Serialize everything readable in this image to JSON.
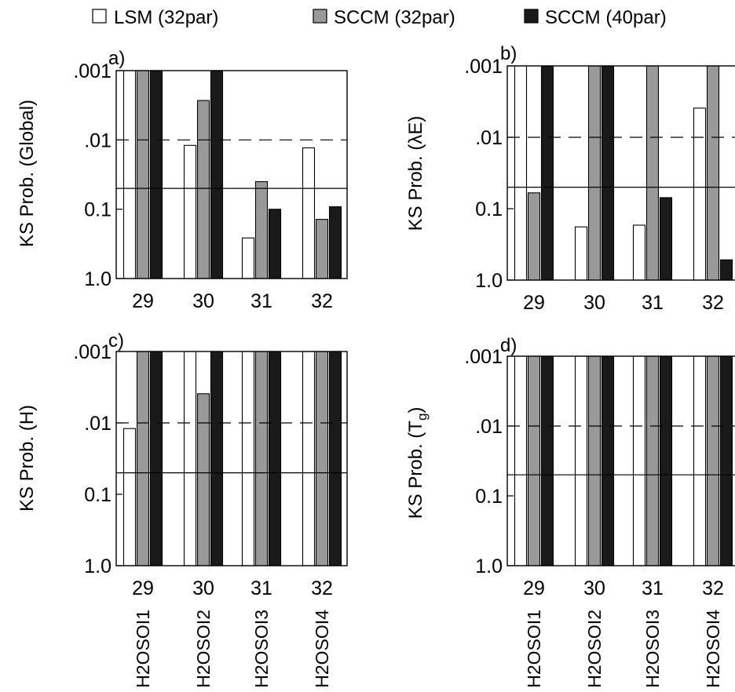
{
  "legend": {
    "items": [
      {
        "label": "LSM (32par)",
        "color": "#ffffff"
      },
      {
        "label": "SCCM (32par)",
        "color": "#999999"
      },
      {
        "label": "SCCM (40par)",
        "color": "#1a1a1a"
      }
    ]
  },
  "chart_data": [
    {
      "type": "bar",
      "panel_label": "a)",
      "ylabel": "KS Prob. (Global)",
      "y_scale": "log",
      "y_inverted": true,
      "ylim": [
        1.0,
        0.001
      ],
      "yticks": [
        ".001",
        ".01",
        "0.1",
        "1.0"
      ],
      "categories": [
        "29",
        "30",
        "31",
        "32"
      ],
      "category_labels": [],
      "reference_lines": [
        {
          "value": 0.01,
          "style": "dashed"
        },
        {
          "value": 0.05,
          "style": "solid"
        }
      ],
      "series": [
        {
          "name": "LSM (32par)",
          "values": [
            0.001,
            0.012,
            0.26,
            0.013
          ]
        },
        {
          "name": "SCCM (32par)",
          "values": [
            0.001,
            0.0027,
            0.04,
            0.14
          ]
        },
        {
          "name": "SCCM (40par)",
          "values": [
            0.001,
            0.001,
            0.1,
            0.092
          ]
        }
      ]
    },
    {
      "type": "bar",
      "panel_label": "b)",
      "ylabel": "KS Prob. (λE)",
      "y_scale": "log",
      "y_inverted": true,
      "ylim": [
        1.0,
        0.001
      ],
      "yticks": [
        ".001",
        ".01",
        "0.1",
        "1.0"
      ],
      "categories": [
        "29",
        "30",
        "31",
        "32"
      ],
      "category_labels": [],
      "reference_lines": [
        {
          "value": 0.01,
          "style": "dashed"
        },
        {
          "value": 0.05,
          "style": "solid"
        }
      ],
      "series": [
        {
          "name": "LSM (32par)",
          "values": [
            0.001,
            0.18,
            0.17,
            0.0039
          ]
        },
        {
          "name": "SCCM (32par)",
          "values": [
            0.06,
            0.001,
            0.001,
            0.001
          ]
        },
        {
          "name": "SCCM (40par)",
          "values": [
            0.001,
            0.001,
            0.07,
            0.52
          ]
        }
      ]
    },
    {
      "type": "bar",
      "panel_label": "c)",
      "ylabel": "KS Prob. (H)",
      "y_scale": "log",
      "y_inverted": true,
      "ylim": [
        1.0,
        0.001
      ],
      "yticks": [
        ".001",
        ".01",
        "0.1",
        "1.0"
      ],
      "categories": [
        "29",
        "30",
        "31",
        "32"
      ],
      "category_labels": [
        "H2OSOI1",
        "H2OSOI2",
        "H2OSOI3",
        "H2OSOI4"
      ],
      "reference_lines": [
        {
          "value": 0.01,
          "style": "dashed"
        },
        {
          "value": 0.05,
          "style": "solid"
        }
      ],
      "series": [
        {
          "name": "LSM (32par)",
          "values": [
            0.012,
            0.001,
            0.001,
            0.001
          ]
        },
        {
          "name": "SCCM (32par)",
          "values": [
            0.001,
            0.0039,
            0.001,
            0.001
          ]
        },
        {
          "name": "SCCM (40par)",
          "values": [
            0.001,
            0.001,
            0.001,
            0.001
          ]
        }
      ]
    },
    {
      "type": "bar",
      "panel_label": "d)",
      "ylabel_main": "KS Prob. (T",
      "ylabel_sub": "g",
      "ylabel_close": ")",
      "y_scale": "log",
      "y_inverted": true,
      "ylim": [
        1.0,
        0.001
      ],
      "yticks": [
        ".001",
        ".01",
        "0.1",
        "1.0"
      ],
      "categories": [
        "29",
        "30",
        "31",
        "32"
      ],
      "category_labels": [
        "H2OSOI1",
        "H2OSOI2",
        "H2OSOI3",
        "H2OSOI4"
      ],
      "reference_lines": [
        {
          "value": 0.01,
          "style": "dashed"
        },
        {
          "value": 0.05,
          "style": "solid"
        }
      ],
      "series": [
        {
          "name": "LSM (32par)",
          "values": [
            0.001,
            0.001,
            0.001,
            0.001
          ]
        },
        {
          "name": "SCCM (32par)",
          "values": [
            0.001,
            0.001,
            0.001,
            0.001
          ]
        },
        {
          "name": "SCCM (40par)",
          "values": [
            0.001,
            0.001,
            0.001,
            0.001
          ]
        }
      ]
    }
  ]
}
